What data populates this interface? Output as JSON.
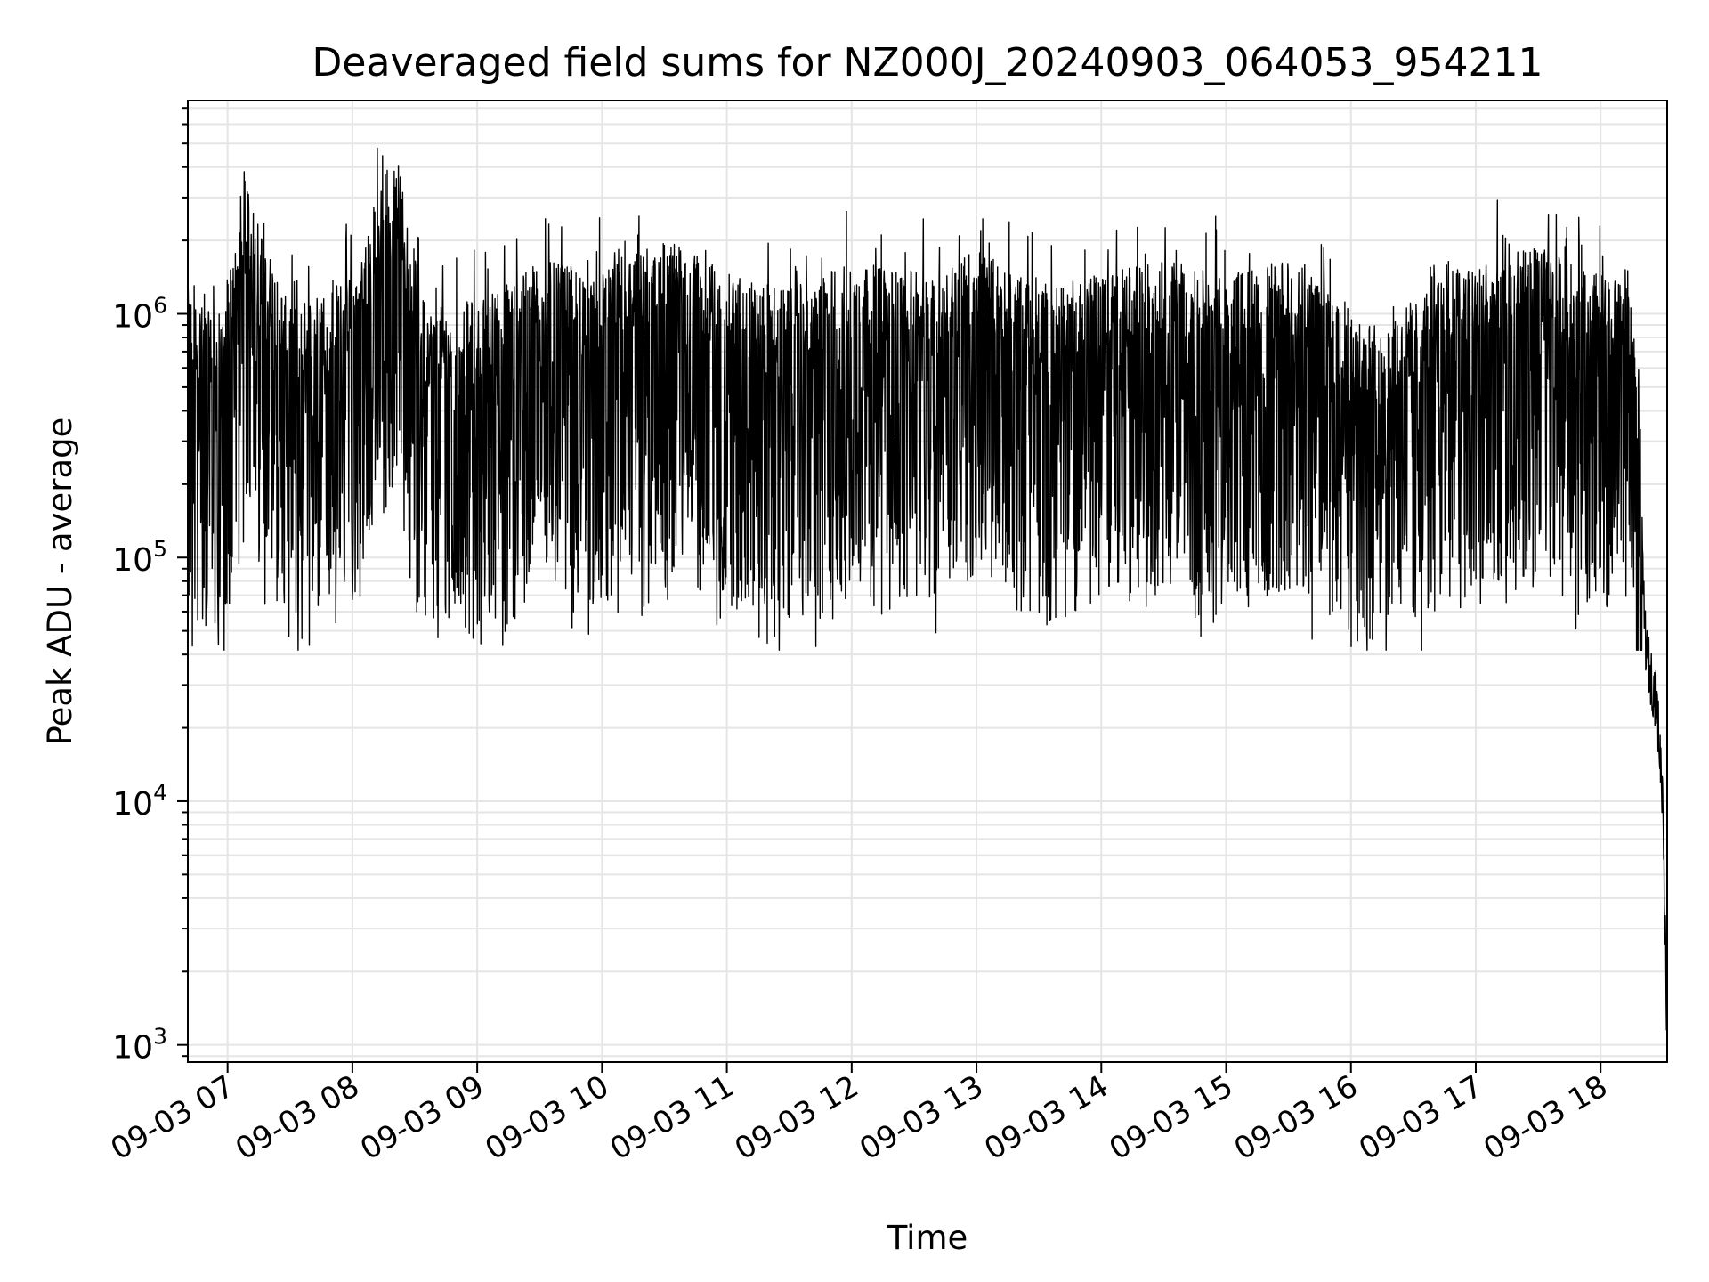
{
  "chart_data": {
    "type": "line",
    "title": "Deaveraged field sums for NZ000J_20240903_064053_954211",
    "xlabel": "Time",
    "ylabel": "Peak ADU - average",
    "yscale": "log",
    "ylim": [
      850,
      7500000
    ],
    "x_range": [
      "2024-09-03 06:40:53",
      "2024-09-03 18:32:00"
    ],
    "x_ticks": [
      {
        "t": "2024-09-03 07:00",
        "label": "09-03 07"
      },
      {
        "t": "2024-09-03 08:00",
        "label": "09-03 08"
      },
      {
        "t": "2024-09-03 09:00",
        "label": "09-03 09"
      },
      {
        "t": "2024-09-03 10:00",
        "label": "09-03 10"
      },
      {
        "t": "2024-09-03 11:00",
        "label": "09-03 11"
      },
      {
        "t": "2024-09-03 12:00",
        "label": "09-03 12"
      },
      {
        "t": "2024-09-03 13:00",
        "label": "09-03 13"
      },
      {
        "t": "2024-09-03 14:00",
        "label": "09-03 14"
      },
      {
        "t": "2024-09-03 15:00",
        "label": "09-03 15"
      },
      {
        "t": "2024-09-03 16:00",
        "label": "09-03 16"
      },
      {
        "t": "2024-09-03 17:00",
        "label": "09-03 17"
      },
      {
        "t": "2024-09-03 18:00",
        "label": "09-03 18"
      }
    ],
    "y_ticks": [
      {
        "value": 1000,
        "base": "10",
        "exp": "3"
      },
      {
        "value": 10000,
        "base": "10",
        "exp": "4"
      },
      {
        "value": 100000,
        "base": "10",
        "exp": "5"
      },
      {
        "value": 1000000,
        "base": "10",
        "exp": "6"
      }
    ],
    "grid": true,
    "line_color": "#000000",
    "grid_color": "#e5e5e5",
    "series": [
      {
        "x": [
          "2024-09-03 06:41",
          "2024-09-03 06:55",
          "2024-09-03 07:10",
          "2024-09-03 07:30",
          "2024-09-03 08:00",
          "2024-09-03 08:20",
          "2024-09-03 08:35",
          "2024-09-03 09:00",
          "2024-09-03 09:30",
          "2024-09-03 10:00",
          "2024-09-03 10:30",
          "2024-09-03 11:00",
          "2024-09-03 11:30",
          "2024-09-03 12:00",
          "2024-09-03 12:30",
          "2024-09-03 13:00",
          "2024-09-03 13:30",
          "2024-09-03 14:00",
          "2024-09-03 14:30",
          "2024-09-03 15:00",
          "2024-09-03 15:30",
          "2024-09-03 15:55",
          "2024-09-03 16:15",
          "2024-09-03 16:40",
          "2024-09-03 17:00",
          "2024-09-03 17:30",
          "2024-09-03 18:00",
          "2024-09-03 18:15",
          "2024-09-03 18:22",
          "2024-09-03 18:27",
          "2024-09-03 18:30",
          "2024-09-03 18:32"
        ],
        "values": [
          600000,
          450000,
          1500000,
          500000,
          700000,
          2500000,
          500000,
          550000,
          800000,
          700000,
          1000000,
          700000,
          600000,
          800000,
          700000,
          900000,
          600000,
          700000,
          800000,
          700000,
          800000,
          600000,
          400000,
          700000,
          800000,
          900000,
          700000,
          600000,
          40000,
          25000,
          10000,
          1000
        ]
      }
    ]
  }
}
